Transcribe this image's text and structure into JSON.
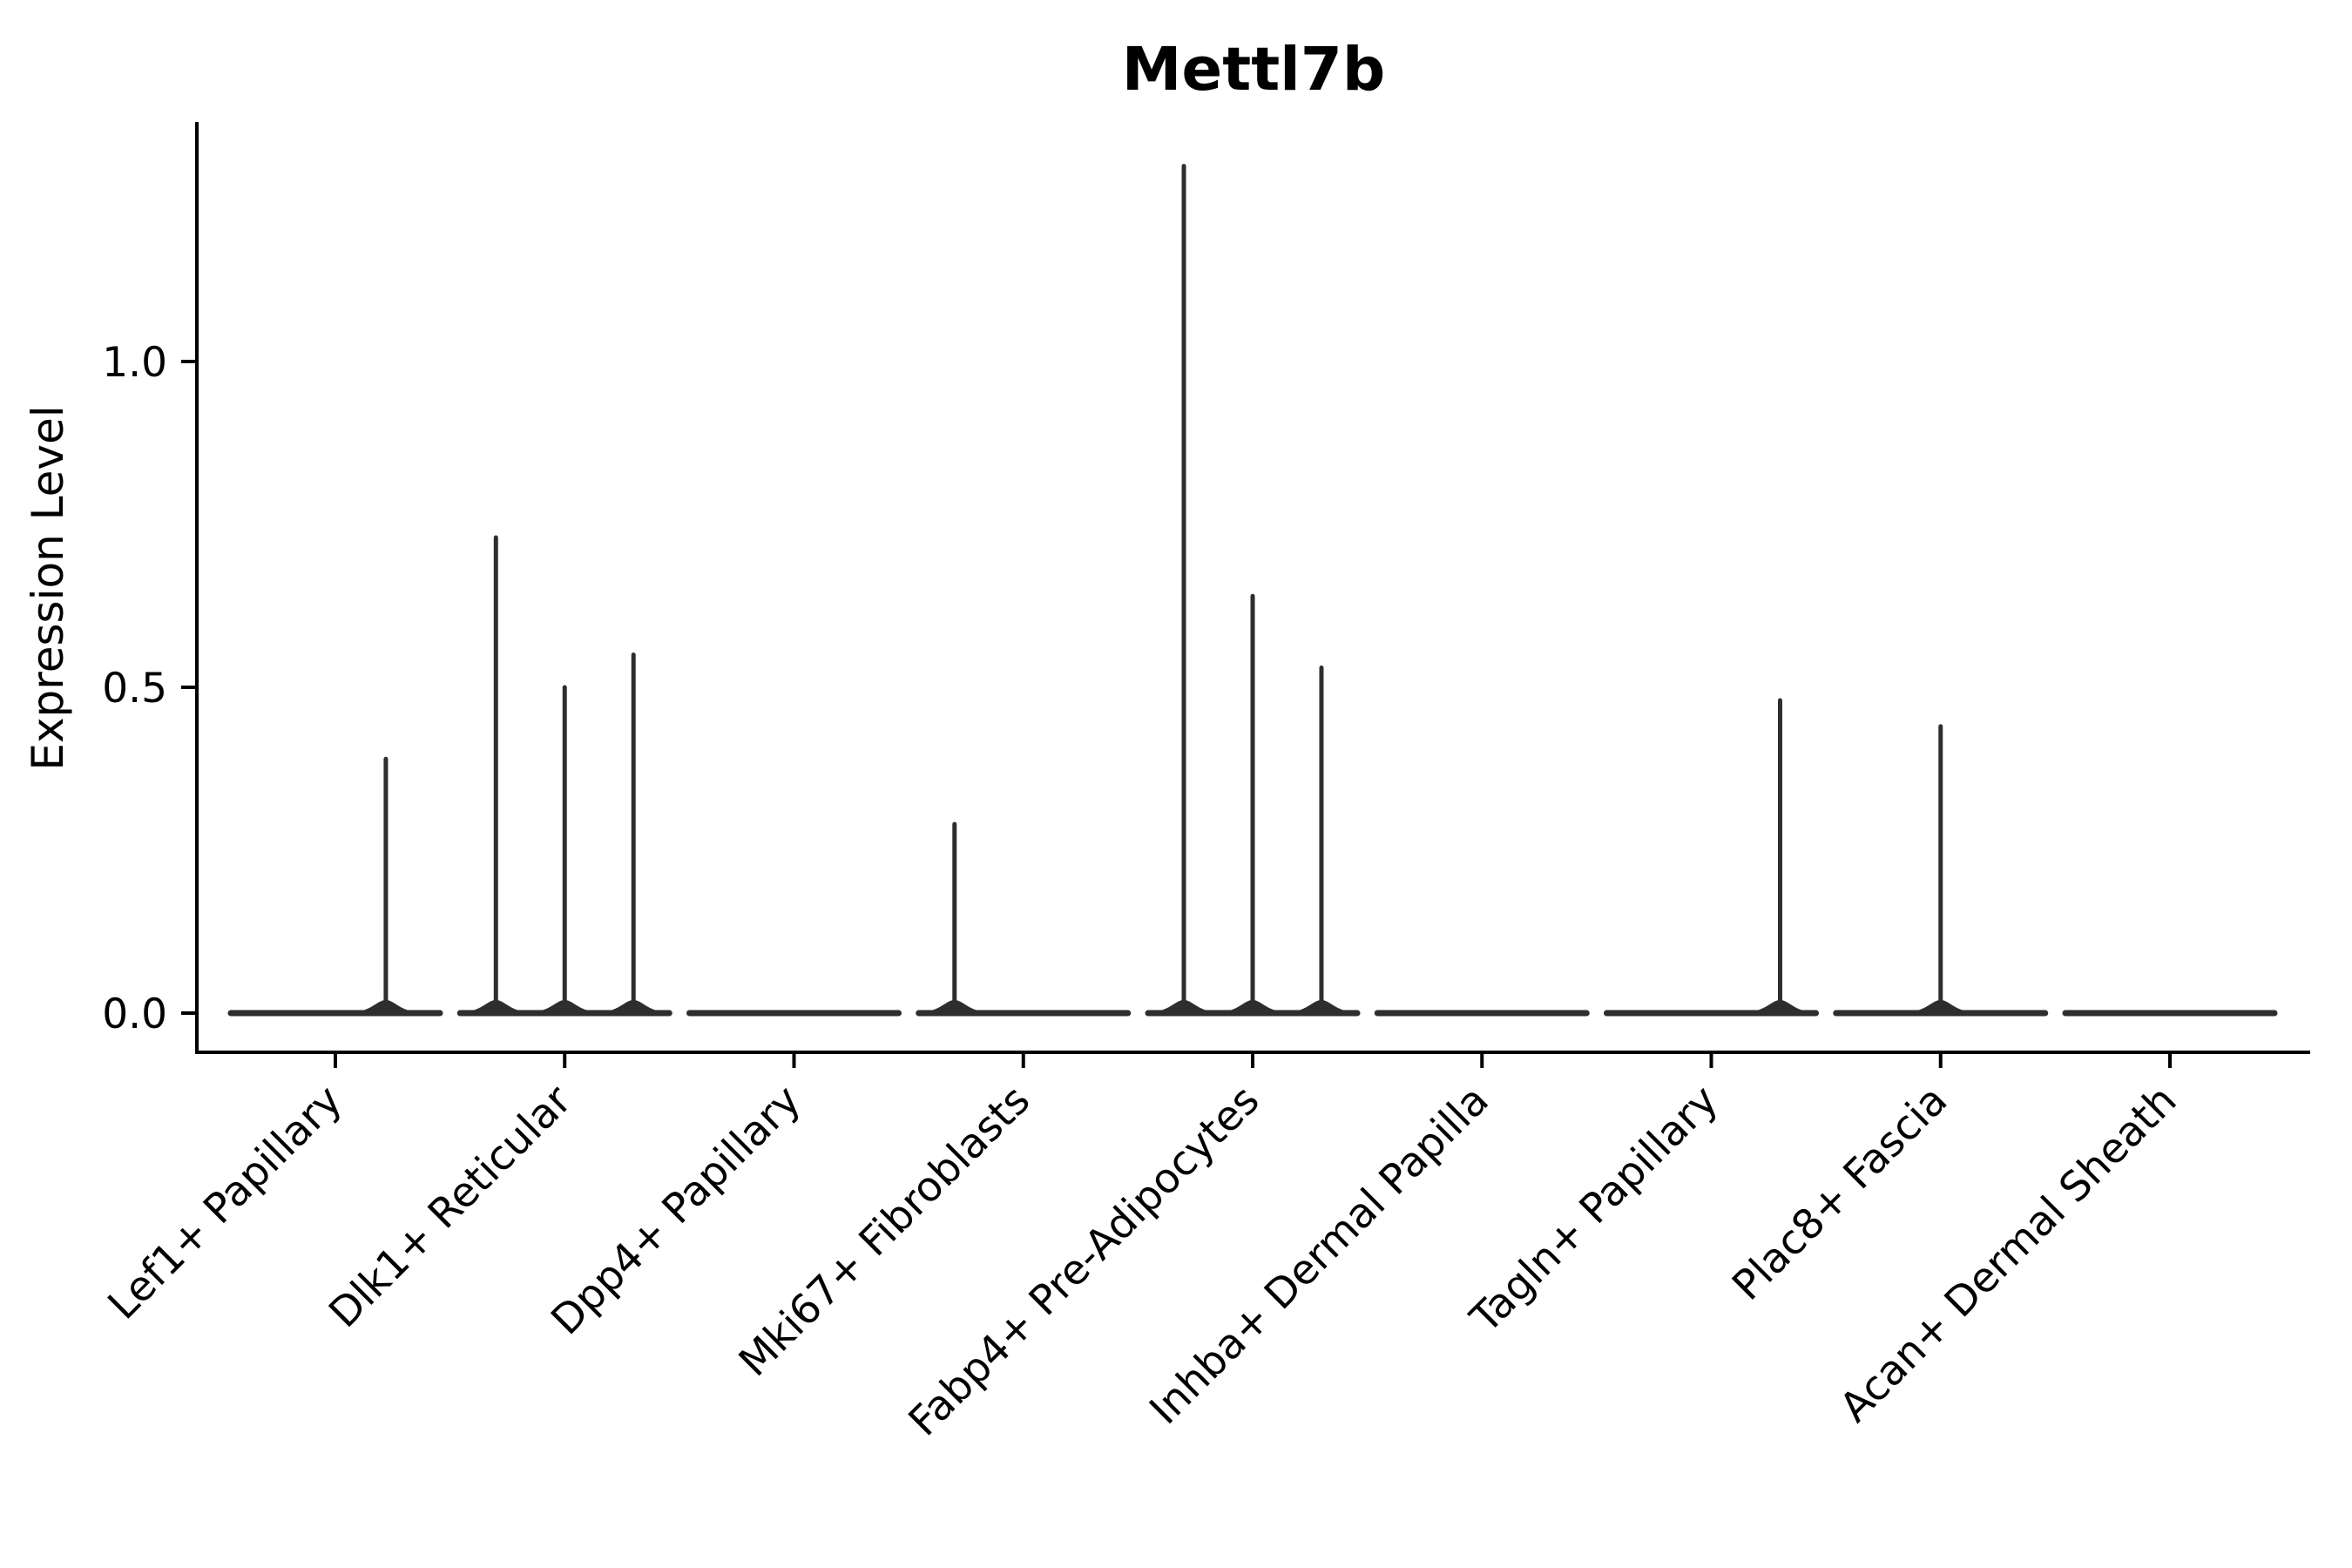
{
  "figure": {
    "title": "Mettl7b"
  },
  "chart_data": {
    "type": "violin",
    "title": "Mettl7b",
    "xlabel": "",
    "ylabel": "Expression Level",
    "categories": [
      "Lef1+ Papillary",
      "Dlk1+ Reticular",
      "Dpp4+ Papillary",
      "Mki67+ Fibroblasts",
      "Fabp4+ Pre-Adipocytes",
      "Inhba+ Dermal Papilla",
      "Tagln+ Papillary",
      "Plac8+ Fascia",
      "Acan+ Dermal Sheath"
    ],
    "ytick_labels": [
      "0.0",
      "0.5",
      "1.0"
    ],
    "ytick_values": [
      0.0,
      0.5,
      1.0
    ],
    "ylim": [
      -0.06,
      1.37
    ],
    "grid": false,
    "legend": "none",
    "violin_color": "#2e2e2e",
    "axis_color": "#000000",
    "body_shape": "flat-at-zero",
    "baseline_value": 0.0,
    "series": [
      {
        "category": "Lef1+ Papillary",
        "spikes": [
          {
            "offset": 0.22,
            "value": 0.39
          }
        ]
      },
      {
        "category": "Dlk1+ Reticular",
        "spikes": [
          {
            "offset": -0.3,
            "value": 0.73
          },
          {
            "offset": 0.0,
            "value": 0.5
          },
          {
            "offset": 0.3,
            "value": 0.55
          }
        ]
      },
      {
        "category": "Dpp4+ Papillary",
        "spikes": []
      },
      {
        "category": "Mki67+ Fibroblasts",
        "spikes": [
          {
            "offset": -0.3,
            "value": 0.29
          }
        ]
      },
      {
        "category": "Fabp4+ Pre-Adipocytes",
        "spikes": [
          {
            "offset": -0.3,
            "value": 1.3
          },
          {
            "offset": 0.0,
            "value": 0.64
          },
          {
            "offset": 0.3,
            "value": 0.53
          }
        ]
      },
      {
        "category": "Inhba+ Dermal Papilla",
        "spikes": []
      },
      {
        "category": "Tagln+ Papillary",
        "spikes": [
          {
            "offset": 0.3,
            "value": 0.48
          }
        ]
      },
      {
        "category": "Plac8+ Fascia",
        "spikes": [
          {
            "offset": 0.0,
            "value": 0.44
          }
        ]
      },
      {
        "category": "Acan+ Dermal Sheath",
        "spikes": []
      }
    ]
  }
}
